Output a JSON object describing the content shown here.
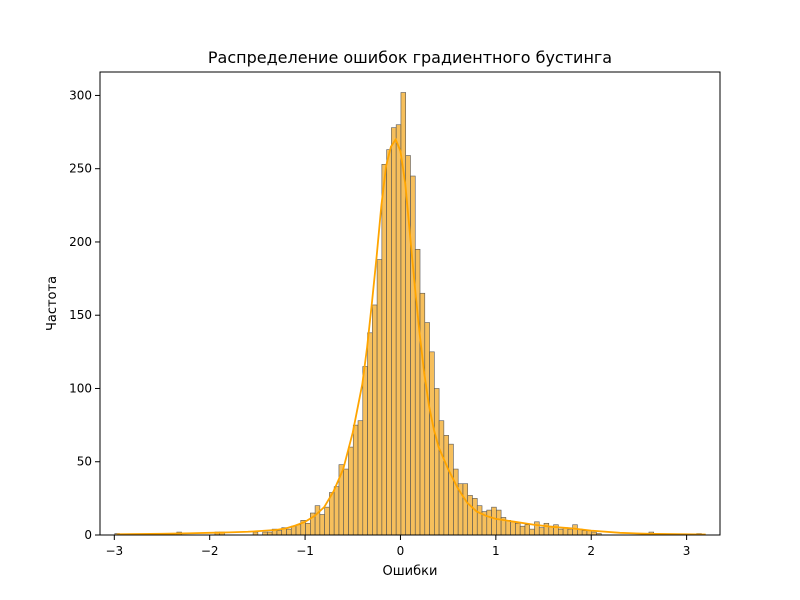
{
  "chart_data": {
    "type": "bar",
    "title": "Распределение ошибок градиентного бустинга",
    "xlabel": "Ошибки",
    "ylabel": "Частота",
    "xlim": [
      -3.15,
      3.35
    ],
    "ylim": [
      0,
      316
    ],
    "xticks": [
      -3,
      -2,
      -1,
      0,
      1,
      2,
      3
    ],
    "xtick_labels": [
      "−3",
      "−2",
      "−1",
      "0",
      "1",
      "2",
      "3"
    ],
    "yticks": [
      0,
      50,
      100,
      150,
      200,
      250,
      300
    ],
    "ytick_labels": [
      "0",
      "50",
      "100",
      "150",
      "200",
      "250",
      "300"
    ],
    "grid": false,
    "bin_width": 0.05,
    "bar_color": "#f5b440",
    "bar_edge_color": "#555555",
    "kde_color": "#ffa500",
    "bins": [
      {
        "x": -2.97,
        "value": 1
      },
      {
        "x": -2.32,
        "value": 2
      },
      {
        "x": -1.92,
        "value": 2
      },
      {
        "x": -1.87,
        "value": 2
      },
      {
        "x": -1.52,
        "value": 2
      },
      {
        "x": -1.42,
        "value": 2
      },
      {
        "x": -1.37,
        "value": 2
      },
      {
        "x": -1.32,
        "value": 4
      },
      {
        "x": -1.27,
        "value": 3
      },
      {
        "x": -1.22,
        "value": 5
      },
      {
        "x": -1.17,
        "value": 4
      },
      {
        "x": -1.12,
        "value": 6
      },
      {
        "x": -1.07,
        "value": 7
      },
      {
        "x": -1.02,
        "value": 10
      },
      {
        "x": -0.97,
        "value": 8
      },
      {
        "x": -0.92,
        "value": 15
      },
      {
        "x": -0.87,
        "value": 20
      },
      {
        "x": -0.82,
        "value": 14
      },
      {
        "x": -0.77,
        "value": 19
      },
      {
        "x": -0.72,
        "value": 29
      },
      {
        "x": -0.67,
        "value": 33
      },
      {
        "x": -0.62,
        "value": 48
      },
      {
        "x": -0.57,
        "value": 45
      },
      {
        "x": -0.52,
        "value": 60
      },
      {
        "x": -0.47,
        "value": 75
      },
      {
        "x": -0.42,
        "value": 78
      },
      {
        "x": -0.37,
        "value": 115
      },
      {
        "x": -0.32,
        "value": 138
      },
      {
        "x": -0.27,
        "value": 157
      },
      {
        "x": -0.22,
        "value": 188
      },
      {
        "x": -0.17,
        "value": 253
      },
      {
        "x": -0.12,
        "value": 263
      },
      {
        "x": -0.07,
        "value": 278
      },
      {
        "x": -0.02,
        "value": 280
      },
      {
        "x": 0.03,
        "value": 302
      },
      {
        "x": 0.08,
        "value": 259
      },
      {
        "x": 0.13,
        "value": 245
      },
      {
        "x": 0.18,
        "value": 195
      },
      {
        "x": 0.23,
        "value": 165
      },
      {
        "x": 0.28,
        "value": 145
      },
      {
        "x": 0.33,
        "value": 125
      },
      {
        "x": 0.38,
        "value": 100
      },
      {
        "x": 0.43,
        "value": 78
      },
      {
        "x": 0.48,
        "value": 68
      },
      {
        "x": 0.53,
        "value": 62
      },
      {
        "x": 0.58,
        "value": 45
      },
      {
        "x": 0.63,
        "value": 35
      },
      {
        "x": 0.68,
        "value": 35
      },
      {
        "x": 0.73,
        "value": 27
      },
      {
        "x": 0.78,
        "value": 25
      },
      {
        "x": 0.83,
        "value": 20
      },
      {
        "x": 0.88,
        "value": 16
      },
      {
        "x": 0.93,
        "value": 17
      },
      {
        "x": 0.98,
        "value": 19
      },
      {
        "x": 1.03,
        "value": 17
      },
      {
        "x": 1.08,
        "value": 12
      },
      {
        "x": 1.13,
        "value": 10
      },
      {
        "x": 1.18,
        "value": 9
      },
      {
        "x": 1.23,
        "value": 8
      },
      {
        "x": 1.28,
        "value": 6
      },
      {
        "x": 1.33,
        "value": 7
      },
      {
        "x": 1.38,
        "value": 4
      },
      {
        "x": 1.43,
        "value": 9
      },
      {
        "x": 1.48,
        "value": 5
      },
      {
        "x": 1.53,
        "value": 8
      },
      {
        "x": 1.58,
        "value": 6
      },
      {
        "x": 1.63,
        "value": 7
      },
      {
        "x": 1.68,
        "value": 4
      },
      {
        "x": 1.73,
        "value": 5
      },
      {
        "x": 1.78,
        "value": 4
      },
      {
        "x": 1.83,
        "value": 7
      },
      {
        "x": 1.88,
        "value": 4
      },
      {
        "x": 1.93,
        "value": 3
      },
      {
        "x": 1.98,
        "value": 3
      },
      {
        "x": 2.03,
        "value": 2
      },
      {
        "x": 2.08,
        "value": 1
      },
      {
        "x": 2.63,
        "value": 2
      },
      {
        "x": 3.13,
        "value": 1
      }
    ],
    "kde": {
      "x": [
        -2.97,
        -2.5,
        -2.2,
        -2.0,
        -1.8,
        -1.6,
        -1.45,
        -1.3,
        -1.2,
        -1.1,
        -1.0,
        -0.9,
        -0.8,
        -0.7,
        -0.6,
        -0.5,
        -0.4,
        -0.35,
        -0.3,
        -0.25,
        -0.2,
        -0.15,
        -0.1,
        -0.05,
        0.0,
        0.05,
        0.1,
        0.15,
        0.2,
        0.25,
        0.3,
        0.35,
        0.4,
        0.5,
        0.6,
        0.7,
        0.8,
        0.9,
        1.0,
        1.2,
        1.4,
        1.6,
        1.8,
        2.0,
        2.3,
        2.6,
        3.2
      ],
      "y": [
        0.5,
        0.8,
        1.2,
        1.5,
        1.8,
        2.2,
        2.8,
        3.5,
        4.5,
        6.5,
        9,
        13,
        19,
        30,
        45,
        70,
        103,
        128,
        158,
        190,
        225,
        252,
        265,
        270,
        262,
        240,
        205,
        170,
        138,
        110,
        88,
        72,
        60,
        45,
        32,
        22,
        16,
        13,
        11,
        9,
        7,
        5.5,
        4.5,
        3,
        1.5,
        0.8,
        0.3
      ]
    }
  }
}
